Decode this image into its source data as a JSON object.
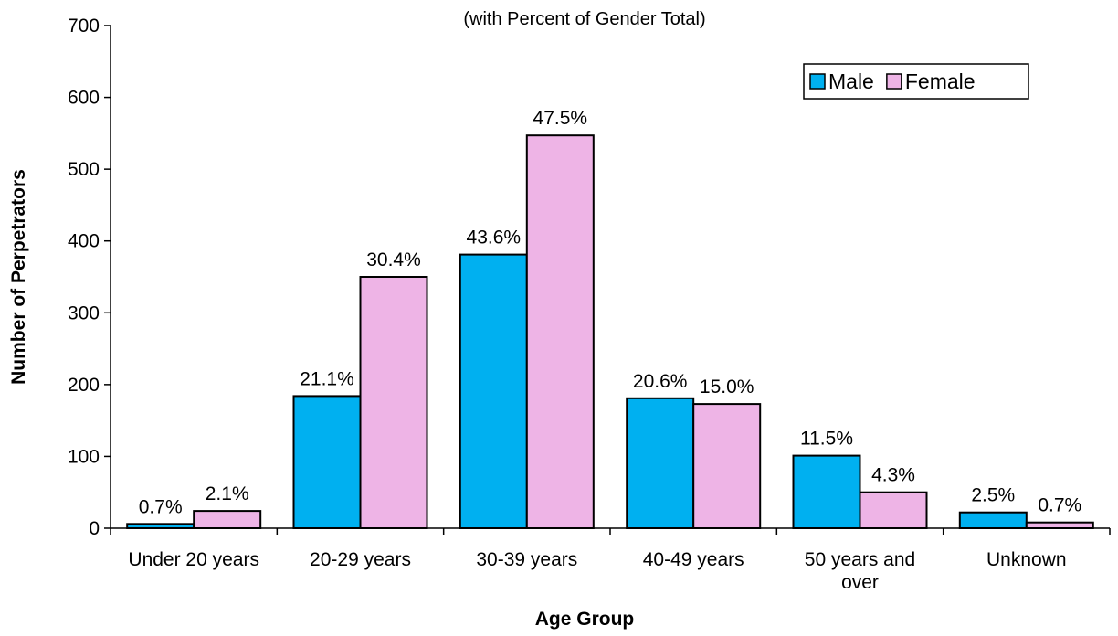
{
  "chart_data": {
    "type": "bar",
    "subtitle": "(with Percent of Gender Total)",
    "xlabel": "Age Group",
    "ylabel": "Number of Perpetrators",
    "ylim": [
      0,
      700
    ],
    "yticks": [
      0,
      100,
      200,
      300,
      400,
      500,
      600,
      700
    ],
    "grid": false,
    "legend_position": "top-right",
    "categories": [
      [
        "Under 20 years"
      ],
      [
        "20-29 years"
      ],
      [
        "30-39 years"
      ],
      [
        "40-49 years"
      ],
      [
        "50 years and",
        "over"
      ],
      [
        "Unknown"
      ]
    ],
    "series": [
      {
        "name": "Male",
        "color": "#00B0F0",
        "values": [
          6,
          184,
          381,
          181,
          101,
          22
        ],
        "labels": [
          "0.7%",
          "21.1%",
          "43.6%",
          "20.6%",
          "11.5%",
          "2.5%"
        ]
      },
      {
        "name": "Female",
        "color": "#EEB4E6",
        "values": [
          24,
          350,
          547,
          173,
          50,
          8
        ],
        "labels": [
          "2.1%",
          "30.4%",
          "47.5%",
          "15.0%",
          "4.3%",
          "0.7%"
        ]
      }
    ]
  }
}
